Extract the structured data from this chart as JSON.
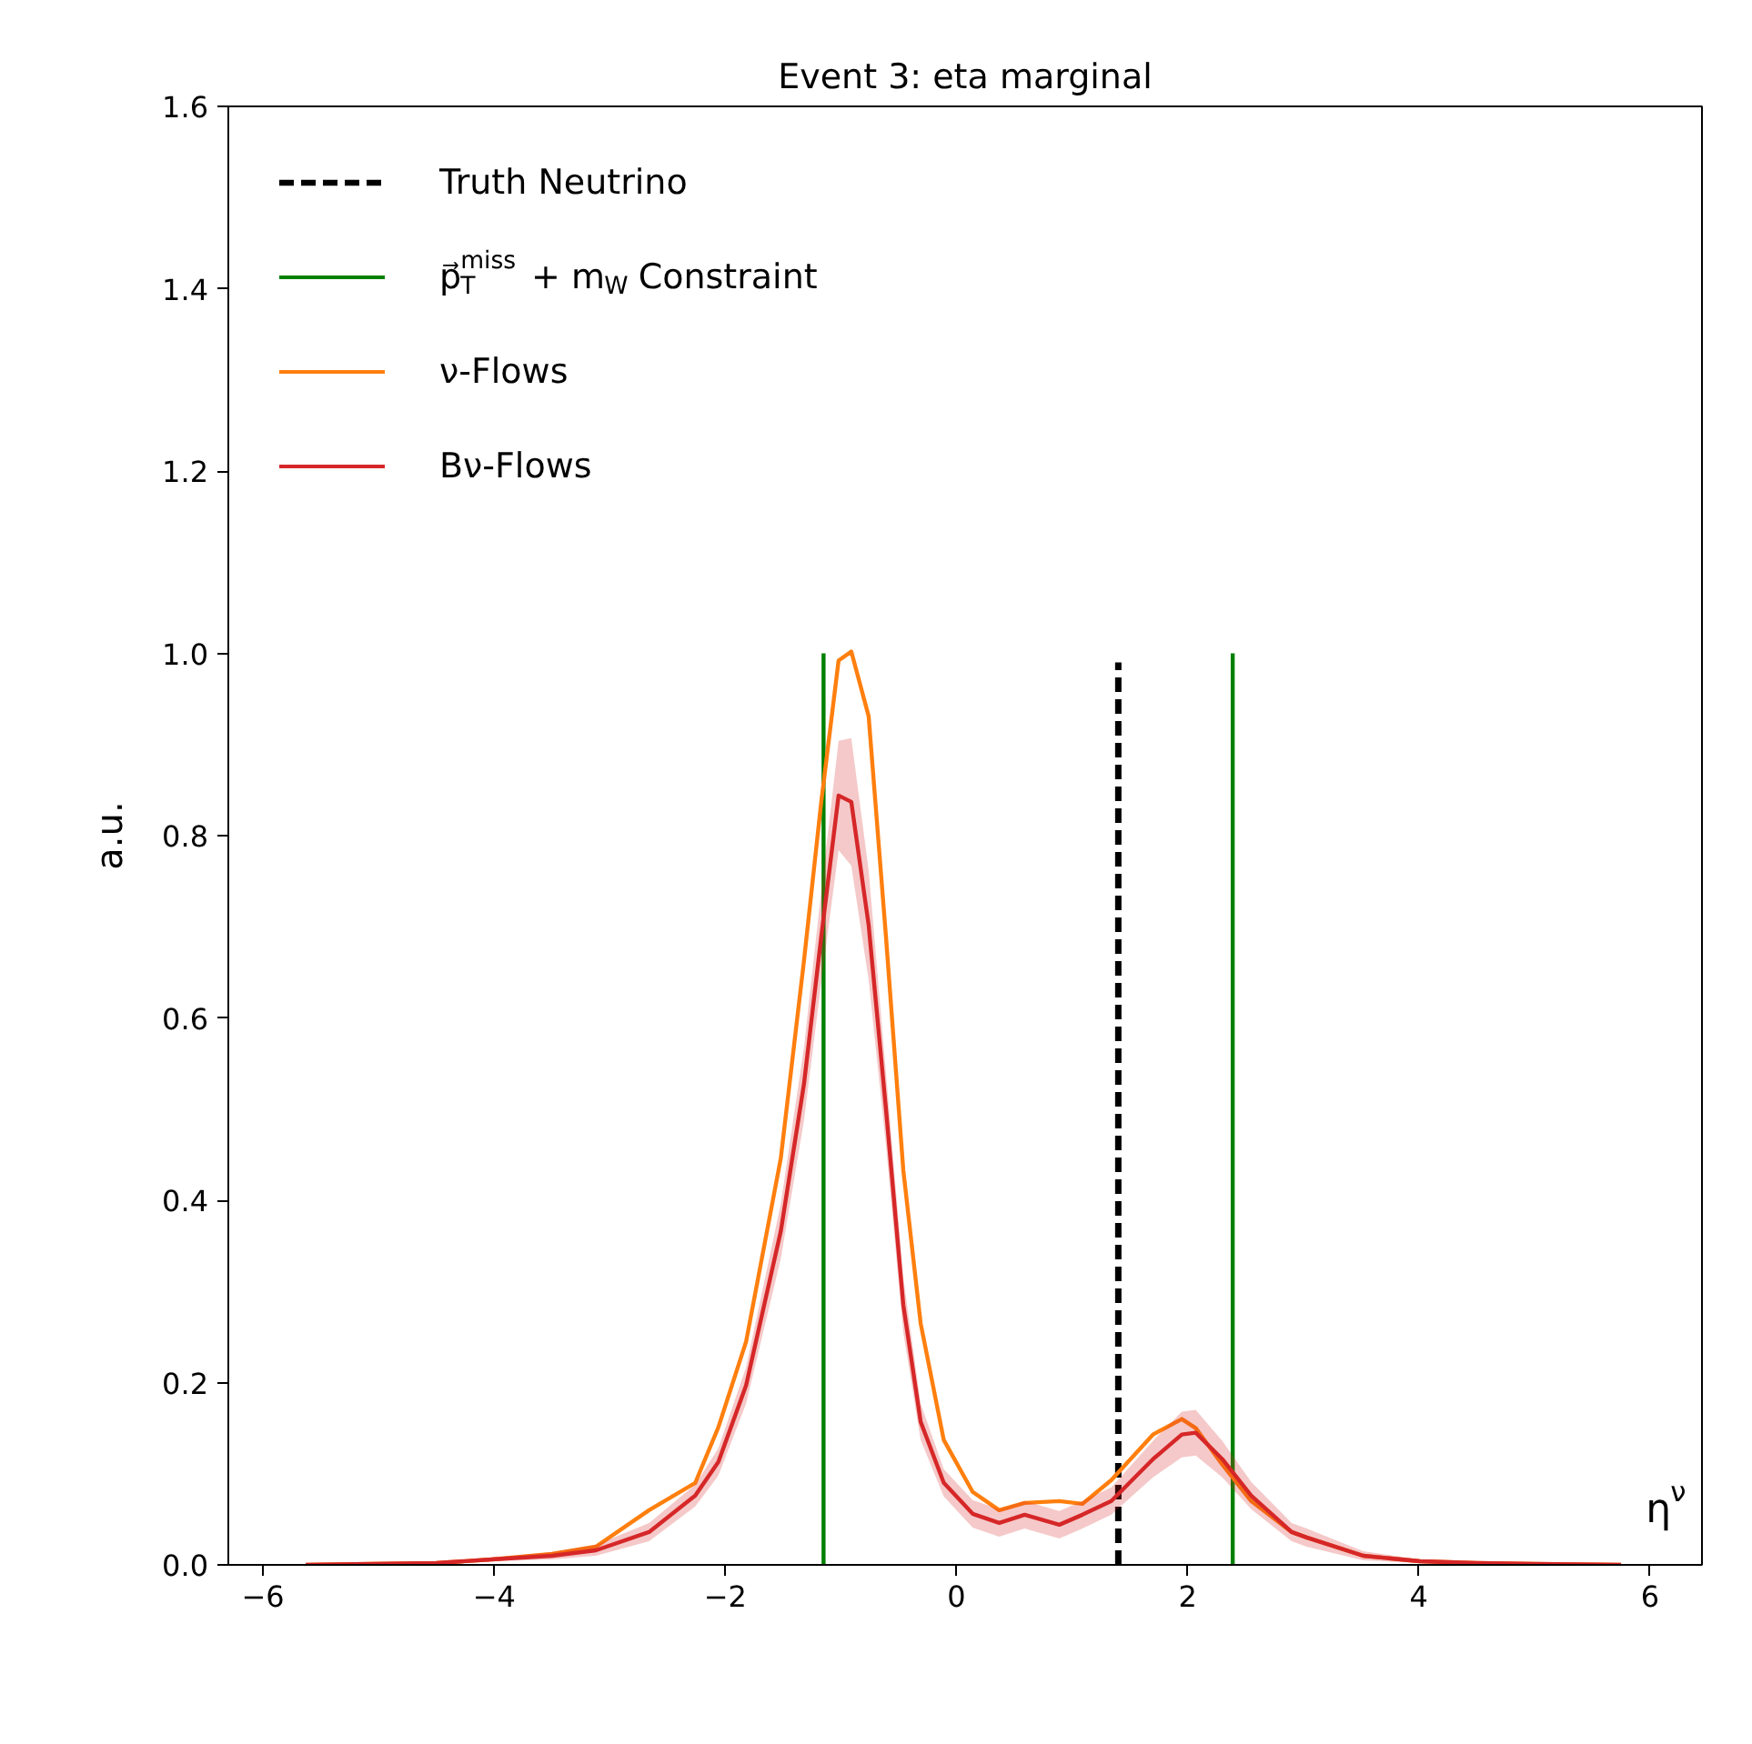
{
  "chart_data": {
    "type": "line",
    "title": "Event 3: eta marginal",
    "xlabel": "η$^{ν}$",
    "ylabel": "a.u.",
    "xlim": [
      -6.3,
      6.45
    ],
    "ylim": [
      0,
      1.6
    ],
    "xticks": [
      {
        "value": -6,
        "label": "−6"
      },
      {
        "value": -4,
        "label": "−4"
      },
      {
        "value": -2,
        "label": "−2"
      },
      0,
      2,
      4,
      6
    ],
    "yticks": [
      {
        "value": 0,
        "label": "0.0"
      },
      {
        "value": 0.2,
        "label": "0.2"
      },
      {
        "value": 0.4,
        "label": "0.4"
      },
      {
        "value": 0.6,
        "label": "0.6"
      },
      {
        "value": 0.8,
        "label": "0.8"
      },
      {
        "value": 1,
        "label": "1.0"
      },
      {
        "value": 1.2,
        "label": "1.2"
      },
      {
        "value": 1.4,
        "label": "1.4"
      },
      {
        "value": 1.6,
        "label": "1.6"
      }
    ],
    "grid": false,
    "legend": "top left",
    "series": [
      {
        "name": "Truth Neutrino",
        "color": "#000000",
        "line_style": "dashed",
        "x": [
          1.4,
          1.4
        ],
        "values": [
          0,
          0.99
        ]
      },
      {
        "name": "p⃗$_{T}$$^{miss}$ + m$_{W}$ Constraint",
        "color": "#008000",
        "line_style": "solid",
        "x": [
          -1.15,
          -1.15
        ],
        "values": [
          0,
          1.0
        ]
      },
      {
        "color": "#008000",
        "line_style": "solid",
        "x": [
          2.39,
          2.39
        ],
        "values": [
          0,
          1.0
        ]
      },
      {
        "name": "ν-Flows",
        "color": "#ff7f0e",
        "line_style": "solid",
        "x": [
          -5.63,
          -4.5,
          -4.02,
          -3.5,
          -3.12,
          -2.66,
          -2.26,
          -2.06,
          -1.82,
          -1.52,
          -1.32,
          -1.17,
          -1.02,
          -0.91,
          -0.76,
          -0.61,
          -0.46,
          -0.31,
          -0.11,
          0.14,
          0.37,
          0.59,
          0.89,
          1.09,
          1.34,
          1.7,
          1.95,
          2.07,
          2.3,
          2.55,
          2.9,
          3.03,
          3.52,
          4.01,
          4.5,
          5.0,
          5.75
        ],
        "values": [
          0,
          0.002,
          0.006,
          0.012,
          0.02,
          0.06,
          0.09,
          0.151,
          0.245,
          0.446,
          0.662,
          0.837,
          0.992,
          1.002,
          0.931,
          0.689,
          0.433,
          0.265,
          0.137,
          0.08,
          0.06,
          0.068,
          0.07,
          0.067,
          0.093,
          0.143,
          0.16,
          0.15,
          0.11,
          0.07,
          0.036,
          0.03,
          0.01,
          0.004,
          0.002,
          0.001,
          0
        ]
      },
      {
        "name": "Bν-Flows",
        "color": "#d62728",
        "line_style": "solid",
        "x": [
          -5.63,
          -4.5,
          -4.02,
          -3.5,
          -3.12,
          -2.66,
          -2.26,
          -2.06,
          -1.82,
          -1.52,
          -1.32,
          -1.17,
          -1.02,
          -0.91,
          -0.76,
          -0.61,
          -0.46,
          -0.31,
          -0.11,
          0.14,
          0.37,
          0.59,
          0.89,
          1.09,
          1.34,
          1.7,
          1.95,
          2.07,
          2.3,
          2.55,
          2.9,
          3.03,
          3.52,
          4.01,
          4.5,
          5.0,
          5.75
        ],
        "values": [
          0,
          0.002,
          0.006,
          0.01,
          0.016,
          0.036,
          0.076,
          0.113,
          0.197,
          0.366,
          0.527,
          0.689,
          0.844,
          0.837,
          0.702,
          0.5,
          0.285,
          0.157,
          0.09,
          0.056,
          0.046,
          0.055,
          0.044,
          0.055,
          0.07,
          0.116,
          0.143,
          0.145,
          0.116,
          0.076,
          0.036,
          0.03,
          0.01,
          0.004,
          0.002,
          0.001,
          0
        ],
        "lower": [
          0,
          0.001,
          0.004,
          0.006,
          0.01,
          0.026,
          0.064,
          0.098,
          0.177,
          0.336,
          0.487,
          0.639,
          0.784,
          0.767,
          0.642,
          0.46,
          0.255,
          0.137,
          0.075,
          0.041,
          0.031,
          0.04,
          0.029,
          0.04,
          0.055,
          0.096,
          0.118,
          0.12,
          0.096,
          0.061,
          0.026,
          0.02,
          0.005,
          0.002,
          0.001,
          0,
          0
        ],
        "upper": [
          0,
          0.003,
          0.008,
          0.014,
          0.022,
          0.046,
          0.088,
          0.128,
          0.217,
          0.396,
          0.567,
          0.739,
          0.904,
          0.907,
          0.762,
          0.54,
          0.315,
          0.177,
          0.105,
          0.071,
          0.061,
          0.07,
          0.059,
          0.07,
          0.085,
          0.136,
          0.168,
          0.17,
          0.136,
          0.091,
          0.046,
          0.04,
          0.015,
          0.006,
          0.003,
          0.002,
          0
        ]
      }
    ]
  }
}
